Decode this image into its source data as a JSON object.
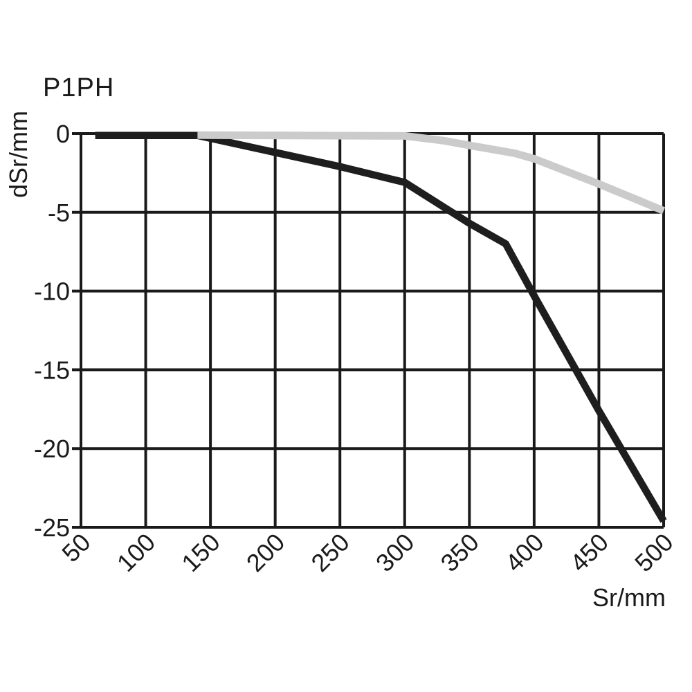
{
  "title": "P1PH",
  "colors": {
    "background": "#ffffff",
    "axis_and_grid": "#1a1a1a",
    "text": "#1a1a1a",
    "series_black": "#1e1e1e",
    "series_gray": "#cbcbcb"
  },
  "chart_data": {
    "type": "line",
    "title": "P1PH",
    "xlabel": "Sr/mm",
    "ylabel": "dSr/mm",
    "xlim": [
      50,
      500
    ],
    "ylim": [
      -25,
      0
    ],
    "x_ticks": [
      50,
      100,
      150,
      200,
      250,
      300,
      350,
      400,
      450,
      500
    ],
    "y_ticks": [
      0,
      -5,
      -10,
      -15,
      -20,
      -25
    ],
    "grid": true,
    "legend_position": "none",
    "series": [
      {
        "name": "black-curve",
        "color": "#1e1e1e",
        "stroke_width": 10.5,
        "points": [
          [
            61,
            -0.12
          ],
          [
            140,
            -0.12
          ],
          [
            200,
            -1.2
          ],
          [
            250,
            -2.1
          ],
          [
            300,
            -3.1
          ],
          [
            350,
            -5.7
          ],
          [
            378,
            -7.0
          ],
          [
            400,
            -10.3
          ],
          [
            450,
            -17.6
          ],
          [
            500,
            -24.6
          ]
        ]
      },
      {
        "name": "gray-curve",
        "color": "#cbcbcb",
        "stroke_width": 11,
        "points": [
          [
            140,
            -0.1
          ],
          [
            300,
            -0.15
          ],
          [
            330,
            -0.45
          ],
          [
            350,
            -0.75
          ],
          [
            385,
            -1.25
          ],
          [
            400,
            -1.6
          ],
          [
            450,
            -3.2
          ],
          [
            500,
            -4.9
          ]
        ]
      }
    ]
  }
}
